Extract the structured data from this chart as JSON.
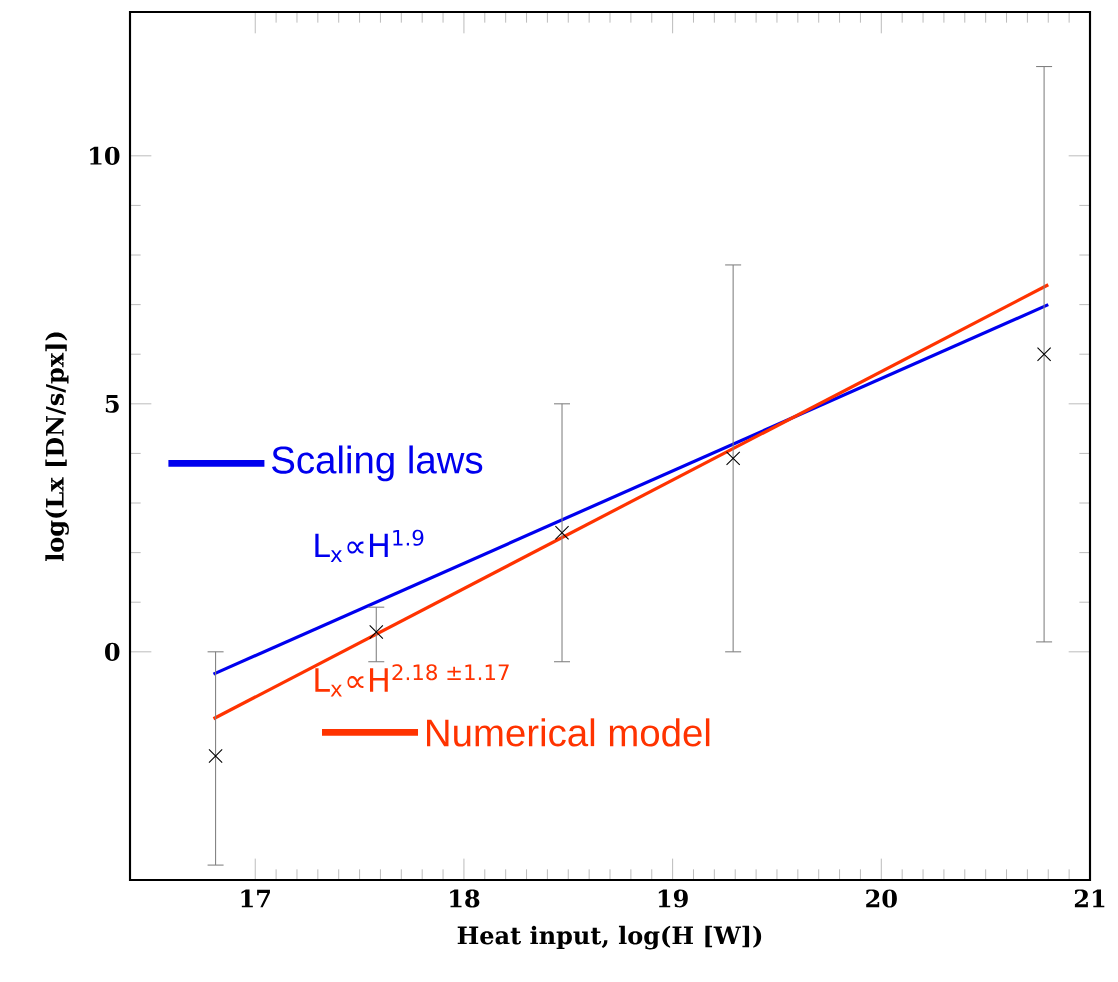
{
  "chart_data": {
    "type": "line",
    "xlabel": "Heat input, log(H [W])",
    "ylabel": "log(Lx [DN/s/px])",
    "xlim": [
      16.4,
      21.0
    ],
    "ylim": [
      -4.6,
      12.9
    ],
    "xticks": [
      17,
      18,
      19,
      20,
      21
    ],
    "yticks": [
      0,
      5,
      10
    ],
    "legend": "left",
    "grid": false,
    "series": [
      {
        "name": "Scaling laws",
        "color": "#0000ee",
        "x": [
          16.8,
          20.8
        ],
        "values": [
          -0.45,
          7.0
        ]
      },
      {
        "name": "Numerical model",
        "color": "#ff3300",
        "x": [
          16.8,
          20.8
        ],
        "values": [
          -1.35,
          7.4
        ]
      },
      {
        "color": "#000000",
        "type": "scatter",
        "marker": "cross",
        "x": [
          16.81,
          17.58,
          18.47,
          19.29,
          20.78
        ],
        "values": [
          -2.1,
          0.4,
          2.4,
          3.9,
          6.0
        ],
        "errors": [
          [
            -4.3,
            0.0
          ],
          [
            -0.2,
            0.9
          ],
          [
            -0.2,
            5.0
          ],
          [
            0.0,
            7.8
          ],
          [
            0.2,
            11.8
          ]
        ]
      }
    ],
    "annotations": [
      "L$_{x}$∝H$^{1.9}$",
      "L$_{x}$∝H$^{2.18 ±1.17}$"
    ]
  }
}
